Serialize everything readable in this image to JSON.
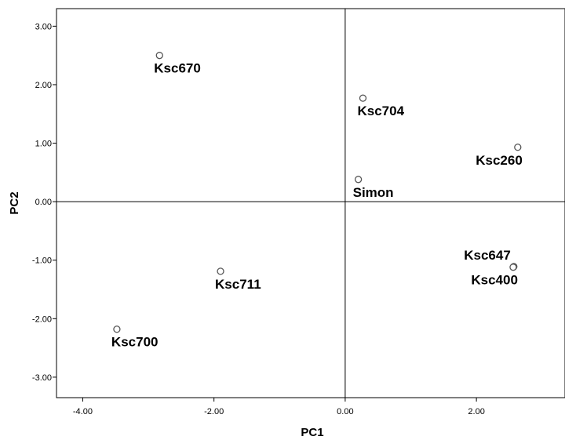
{
  "chart_data": {
    "type": "scatter",
    "title": "",
    "xlabel": "PC1",
    "ylabel": "PC2",
    "xlim": [
      -4.4,
      3.35
    ],
    "ylim": [
      -3.35,
      3.3
    ],
    "grid": false,
    "reference_lines": {
      "x": 0,
      "y": 0
    },
    "x_ticks": [
      {
        "value": -4,
        "label": "-4.00"
      },
      {
        "value": -2,
        "label": "-2.00"
      },
      {
        "value": 0,
        "label": "0.00"
      },
      {
        "value": 2,
        "label": "2.00"
      }
    ],
    "y_ticks": [
      {
        "value": 3,
        "label": "3.00"
      },
      {
        "value": 2,
        "label": "2.00"
      },
      {
        "value": 1,
        "label": "1.00"
      },
      {
        "value": 0,
        "label": "0.00"
      },
      {
        "value": -1,
        "label": "-1.00"
      },
      {
        "value": -2,
        "label": "-2.00"
      },
      {
        "value": -3,
        "label": "-3.00"
      }
    ],
    "points": [
      {
        "label": "Ksc670",
        "x": -2.83,
        "y": 2.5,
        "label_anchor": "below-right"
      },
      {
        "label": "Ksc704",
        "x": 0.27,
        "y": 1.77,
        "label_anchor": "below-right"
      },
      {
        "label": "Ksc260",
        "x": 2.63,
        "y": 0.93,
        "label_anchor": "below-left"
      },
      {
        "label": "Simon",
        "x": 0.2,
        "y": 0.38,
        "label_anchor": "below-right"
      },
      {
        "label": "Ksc647",
        "x": 2.57,
        "y": -1.11,
        "label_anchor": "above-left"
      },
      {
        "label": "Ksc400",
        "x": 2.56,
        "y": -1.12,
        "label_anchor": "below-left"
      },
      {
        "label": "Ksc711",
        "x": -1.9,
        "y": -1.19,
        "label_anchor": "below-right"
      },
      {
        "label": "Ksc700",
        "x": -3.48,
        "y": -2.18,
        "label_anchor": "below-right"
      }
    ]
  }
}
